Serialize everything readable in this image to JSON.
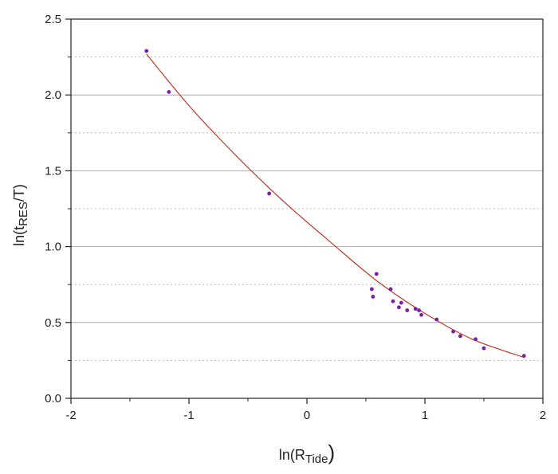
{
  "chart_data": {
    "type": "scatter",
    "title": "",
    "xlabel": {
      "prefix": "ln(R",
      "sub": "Tide",
      "suffix": ")"
    },
    "ylabel": {
      "prefix": "ln(t",
      "sub": "RES",
      "suffix": "/T)"
    },
    "xlim": [
      -2,
      2
    ],
    "ylim": [
      0,
      2.5
    ],
    "x_ticks": [
      -2,
      -1,
      0,
      1,
      2
    ],
    "x_tick_labels": [
      "-2",
      "-1",
      "0",
      "1",
      "2"
    ],
    "y_ticks": [
      0.0,
      0.5,
      1.0,
      1.5,
      2.0,
      2.5
    ],
    "y_tick_labels": [
      "0.0",
      "0.5",
      "1.0",
      "1.5",
      "2.0",
      "2.5"
    ],
    "grid": {
      "major_y": "solid",
      "minor_y": "dotted"
    },
    "colors": {
      "points": "#7b1fa2",
      "fit": "#c0392b"
    },
    "series": [
      {
        "kind": "points",
        "x": [
          -1.36,
          -1.17,
          -0.32,
          0.55,
          0.56,
          0.59,
          0.71,
          0.73,
          0.78,
          0.8,
          0.85,
          0.92,
          0.95,
          0.97,
          1.1,
          1.24,
          1.3,
          1.43,
          1.5,
          1.84
        ],
        "y": [
          2.29,
          2.02,
          1.35,
          0.72,
          0.67,
          0.82,
          0.72,
          0.64,
          0.6,
          0.63,
          0.58,
          0.59,
          0.58,
          0.55,
          0.52,
          0.44,
          0.41,
          0.39,
          0.33,
          0.28
        ]
      },
      {
        "kind": "fit",
        "x": [
          -1.36,
          -1.0,
          -0.6,
          -0.2,
          0.2,
          0.6,
          1.0,
          1.4,
          1.84
        ],
        "y": [
          2.27,
          1.93,
          1.6,
          1.3,
          1.03,
          0.77,
          0.56,
          0.39,
          0.27
        ]
      }
    ]
  }
}
